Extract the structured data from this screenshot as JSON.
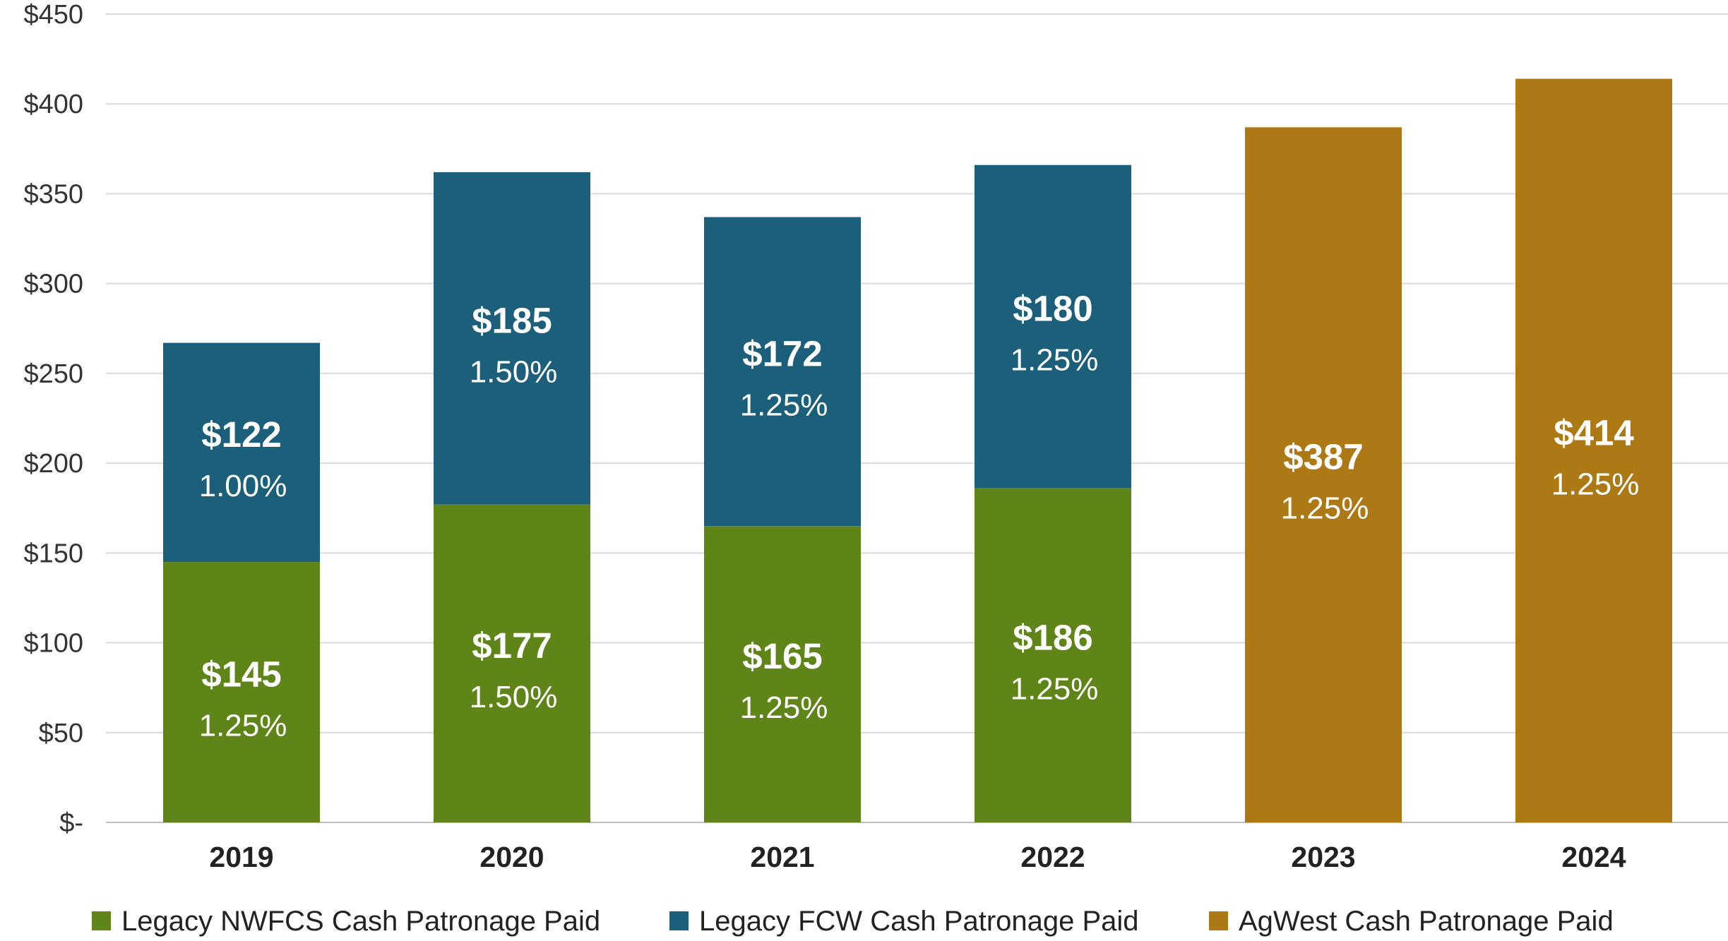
{
  "chart_data": {
    "type": "bar",
    "stacked": true,
    "categories": [
      "2019",
      "2020",
      "2021",
      "2022",
      "2023",
      "2024"
    ],
    "ylim": [
      0,
      450
    ],
    "yticks": [
      0,
      50,
      100,
      150,
      200,
      250,
      300,
      350,
      400,
      450
    ],
    "ytick_labels": [
      "$-",
      "$50",
      "$100",
      "$150",
      "$200",
      "$250",
      "$300",
      "$350",
      "$400",
      "$450"
    ],
    "grid": true,
    "legend_position": "bottom",
    "title": "",
    "xlabel": "",
    "ylabel": "",
    "series": [
      {
        "name": "Legacy NWFCS Cash Patronage Paid",
        "color": "#5f8519",
        "values": [
          145,
          177,
          165,
          186,
          null,
          null
        ],
        "value_labels": [
          "$145",
          "$177",
          "$165",
          "$186",
          "",
          ""
        ],
        "rate_labels": [
          "1.25%",
          "1.50%",
          "1.25%",
          "1.25%",
          "",
          ""
        ]
      },
      {
        "name": "Legacy FCW Cash Patronage Paid",
        "color": "#1c5f7a",
        "values": [
          122,
          185,
          172,
          180,
          null,
          null
        ],
        "value_labels": [
          "$122",
          "$185",
          "$172",
          "$180",
          "",
          ""
        ],
        "rate_labels": [
          "1.00%",
          "1.50%",
          "1.25%",
          "1.25%",
          "",
          ""
        ]
      },
      {
        "name": "AgWest Cash Patronage Paid",
        "color": "#ad7914",
        "values": [
          null,
          null,
          null,
          null,
          387,
          414
        ],
        "value_labels": [
          "",
          "",
          "",
          "",
          "$387",
          "$414"
        ],
        "rate_labels": [
          "",
          "",
          "",
          "",
          "1.25%",
          "1.25%"
        ]
      }
    ]
  }
}
